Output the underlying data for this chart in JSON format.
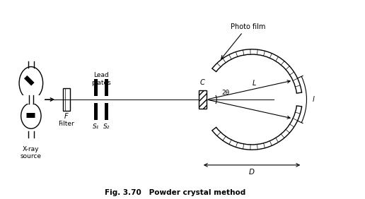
{
  "title": "Fig. 3.70   Powder crystal method",
  "photo_film_label": "Photo film",
  "xray_label": "X-ray\nsource",
  "filter_label": "Filter",
  "filter_sublabel": "F",
  "lead_plates_label": "Lead\nplates",
  "s1_label": "S₁",
  "s2_label": "S₂",
  "c_label": "C",
  "L_label": "L",
  "two_theta_label": "2θ",
  "l_label": "l",
  "D_label": "D",
  "bg_color": "#ffffff",
  "line_color": "#000000",
  "fig_width": 5.16,
  "fig_height": 2.82,
  "dpi": 100,
  "two_theta_deg": 25
}
